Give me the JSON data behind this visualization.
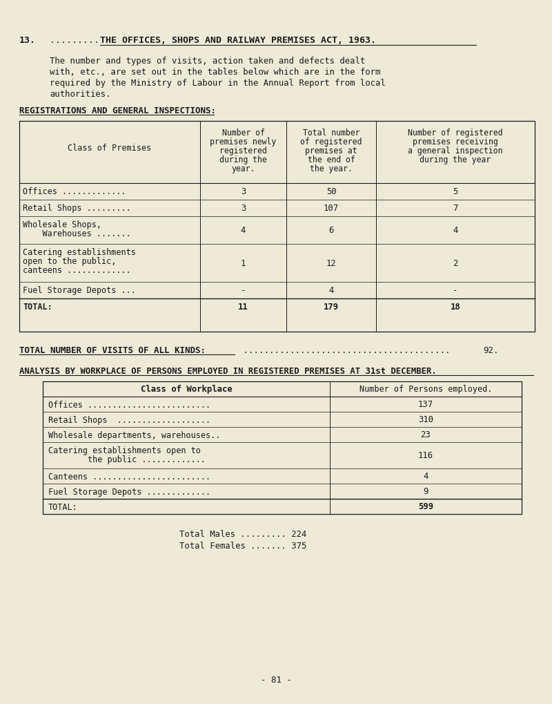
{
  "bg_color": "#eeead8",
  "text_color": "#1a1a1a",
  "title": "THE OFFICES, SHOPS AND RAILWAY PREMISES ACT, 1963.",
  "intro_text": "The number and types of visits, action taken and defects dealt\nwith, etc., are set out in the tables below which are in the form\nrequired by the Ministry of Labour in the Annual Report from local\nauthorities.",
  "section1_heading": "REGISTRATIONS AND GENERAL INSPECTIONS:",
  "table1_col_headers": [
    "Class of Premises",
    "Number of\npremises newly\nregistered\nduring the\nyear.",
    "Total number\nof registered\npremises at\nthe end of\nthe year.",
    "Number of registered\npremises receiving\na general inspection\nduring the year"
  ],
  "table1_rows": [
    [
      "Offices .............",
      "3",
      "50",
      "5"
    ],
    [
      "Retail Shops .........",
      "3",
      "107",
      "7"
    ],
    [
      "Wholesale Shops,\n    Warehouses .......",
      "4",
      "6",
      "4"
    ],
    [
      "Catering establishments\nopen to the public,\ncanteens .............",
      "1",
      "12",
      "2"
    ],
    [
      "Fuel Storage Depots ...",
      "-",
      "4",
      "-"
    ],
    [
      "TOTAL:",
      "11",
      "179",
      "18"
    ]
  ],
  "visits_value": "92.",
  "section2_heading": "ANALYSIS BY WORKPLACE OF PERSONS EMPLOYED IN REGISTERED PREMISES AT 31st DECEMBER.",
  "table2_col_headers": [
    "Class of Workplace",
    "Number of Persons employed."
  ],
  "table2_rows": [
    [
      "Offices .........................",
      "137"
    ],
    [
      "Retail Shops  ...................",
      "310"
    ],
    [
      "Wholesale departments, warehouses..",
      "23"
    ],
    [
      "Catering establishments open to\n        the public .............",
      "116"
    ],
    [
      "Canteens ........................",
      "4"
    ],
    [
      "Fuel Storage Depots .............",
      "9"
    ],
    [
      "TOTAL:",
      "599"
    ]
  ],
  "total_males": "Total Males ......... 224",
  "total_females": "Total Females ....... 375",
  "page_footer": "- 81 -"
}
